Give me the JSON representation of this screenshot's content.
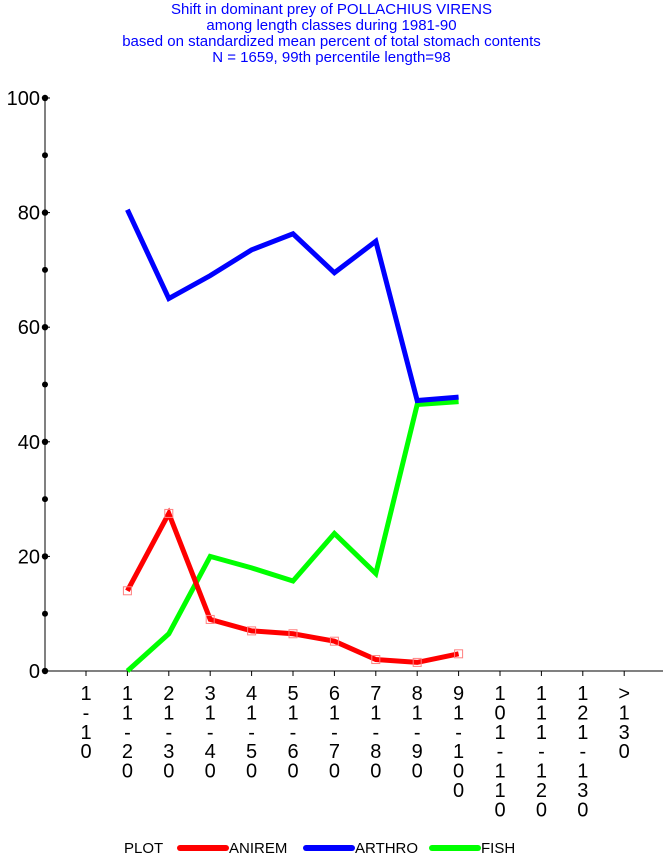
{
  "chart_data": {
    "type": "line",
    "title_lines": [
      "Shift in dominant prey of POLLACHIUS VIRENS",
      "among length classes during 1981-90",
      "based on standardized mean percent of  total stomach contents",
      "N = 1659, 99th percentile  length=98"
    ],
    "xlabel": "",
    "ylabel": "",
    "ylim": [
      0,
      100
    ],
    "yticks": [
      0,
      20,
      40,
      60,
      80,
      100
    ],
    "categories": [
      "1-10",
      "11-20",
      "21-30",
      "31-40",
      "41-50",
      "51-60",
      "61-70",
      "71-80",
      "81-90",
      "91-100",
      "101-110",
      "111-120",
      "121-130",
      ">130"
    ],
    "legend_title": "PLOT",
    "legend_position": "bottom",
    "series": [
      {
        "name": "ANIREM",
        "color": "#ff0000",
        "markers": true,
        "values": [
          null,
          14,
          27.5,
          9,
          7,
          6.5,
          5.2,
          2,
          1.5,
          3,
          null,
          null,
          null,
          null
        ]
      },
      {
        "name": "ARTHRO",
        "color": "#0000ff",
        "markers": false,
        "values": [
          null,
          80.5,
          65,
          69,
          73.5,
          76.3,
          69.5,
          75,
          47.2,
          47.8,
          null,
          null,
          null,
          null
        ]
      },
      {
        "name": "FISH",
        "color": "#00ff00",
        "markers": false,
        "values": [
          null,
          0,
          6.5,
          20,
          18,
          15.7,
          24,
          17,
          46.5,
          47,
          null,
          null,
          null,
          null
        ]
      }
    ]
  }
}
